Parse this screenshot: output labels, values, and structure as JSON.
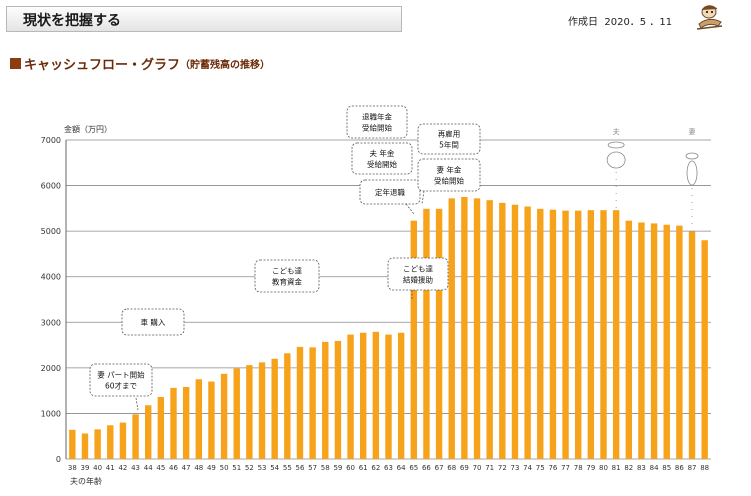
{
  "header": {
    "title": "現状を把握する",
    "date_label": "作成日",
    "date_value": "2020．5 ．11"
  },
  "section": {
    "title": "キャッシュフロー・グラフ",
    "subtitle": "（貯蓄残高の推移）"
  },
  "colors": {
    "bar": "#f7a21b",
    "section_accent": "#8c3c0e"
  },
  "chart_data": {
    "type": "bar",
    "ylabel": "金額（万円）",
    "xlabel": "夫の年齢",
    "ylim": [
      0,
      7000
    ],
    "yticks": [
      0,
      1000,
      2000,
      3000,
      4000,
      5000,
      6000,
      7000
    ],
    "grid": true,
    "categories": [
      "38",
      "39",
      "40",
      "41",
      "42",
      "43",
      "44",
      "45",
      "46",
      "47",
      "48",
      "49",
      "50",
      "51",
      "52",
      "53",
      "54",
      "55",
      "56",
      "57",
      "58",
      "59",
      "60",
      "61",
      "62",
      "63",
      "64",
      "65",
      "66",
      "67",
      "68",
      "69",
      "70",
      "71",
      "72",
      "73",
      "74",
      "75",
      "76",
      "77",
      "78",
      "79",
      "80",
      "81",
      "82",
      "83",
      "84",
      "85",
      "86",
      "87",
      "88"
    ],
    "values": [
      640,
      560,
      650,
      740,
      800,
      980,
      1180,
      1360,
      1560,
      1580,
      1750,
      1700,
      1870,
      1990,
      2060,
      2120,
      2200,
      2320,
      2460,
      2450,
      2570,
      2590,
      2730,
      2770,
      2790,
      2730,
      2770,
      5230,
      5490,
      5490,
      5720,
      5750,
      5720,
      5680,
      5620,
      5580,
      5540,
      5490,
      5470,
      5450,
      5450,
      5460,
      5460,
      5460,
      5230,
      5190,
      5170,
      5140,
      5120,
      4990,
      4800
    ],
    "annotations": [
      {
        "lines": [
          "妻 パート開始",
          "60才まで"
        ],
        "age": "43"
      },
      {
        "lines": [
          "車  購入"
        ],
        "age": ""
      },
      {
        "lines": [
          "こども達",
          "教育資金"
        ],
        "age": ""
      },
      {
        "lines": [
          "こども達",
          "結婚援助"
        ],
        "age": "65"
      },
      {
        "lines": [
          "定年退職"
        ],
        "age": "65"
      },
      {
        "lines": [
          "夫  年金",
          "受給開始"
        ],
        "age": "65"
      },
      {
        "lines": [
          "退職年金",
          "受給開始"
        ],
        "age": "65"
      },
      {
        "lines": [
          "再雇用",
          "5年間"
        ],
        "age": "66"
      },
      {
        "lines": [
          "妻  年金",
          "受給開始"
        ],
        "age": "66"
      }
    ],
    "markers": [
      {
        "label": "夫",
        "age": "81"
      },
      {
        "label": "妻",
        "age": "87"
      }
    ]
  }
}
